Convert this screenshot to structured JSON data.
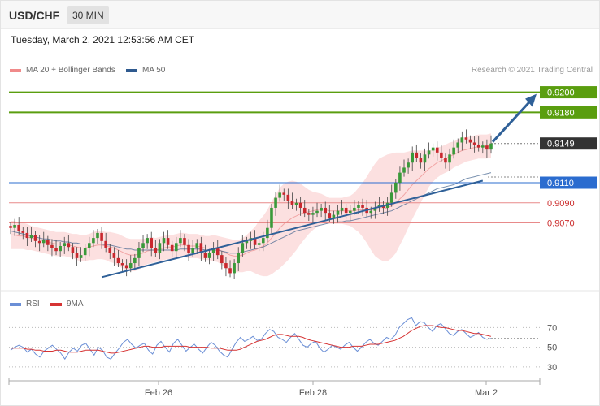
{
  "header": {
    "symbol": "USD/CHF",
    "interval": "30 MIN"
  },
  "datetime": "Tuesday, March 2, 2021 12:53:56 AM CET",
  "credit": "Research © 2021 Trading Central",
  "colors": {
    "green": "#5a9e0f",
    "blue": "#2b6ccf",
    "red": "#d9534f",
    "dark": "#333333",
    "candle_up": "#3a9a3a",
    "candle_down": "#c9282e",
    "band": "#fbdada",
    "ma50": "#3d5f8c",
    "rsi": "#6b8fd6",
    "rsi_ma": "#d63434",
    "arrow": "#2f6098"
  },
  "chart_data": [
    {
      "type": "candlestick",
      "legend": [
        {
          "label": "MA 20 + Bollinger Bands",
          "color": "#f08a8a"
        },
        {
          "label": "MA 50",
          "color": "#2f5a8f"
        }
      ],
      "ylim": [
        0.9005,
        0.9215
      ],
      "x_ticks": [
        "Feb 26",
        "Feb 28",
        "Mar 2"
      ],
      "price_levels": [
        {
          "value": 0.92,
          "label": "0.9200",
          "kind": "resistance",
          "color": "#5a9e0f"
        },
        {
          "value": 0.918,
          "label": "0.9180",
          "kind": "resistance",
          "color": "#5a9e0f"
        },
        {
          "value": 0.9149,
          "label": "0.9149",
          "kind": "last",
          "color": "#333333"
        },
        {
          "value": 0.911,
          "label": "0.9110",
          "kind": "pivot",
          "color": "#2b6ccf"
        },
        {
          "value": 0.909,
          "label": "0.9090",
          "kind": "support",
          "color": "#d9534f"
        },
        {
          "value": 0.907,
          "label": "0.9070",
          "kind": "support",
          "color": "#d9534f"
        }
      ],
      "closes": [
        0.9065,
        0.9068,
        0.9062,
        0.906,
        0.9055,
        0.9058,
        0.9052,
        0.905,
        0.9053,
        0.9048,
        0.9045,
        0.9042,
        0.9047,
        0.905,
        0.9046,
        0.904,
        0.9035,
        0.9038,
        0.9045,
        0.905,
        0.9055,
        0.906,
        0.9052,
        0.9045,
        0.904,
        0.9035,
        0.903,
        0.9028,
        0.9025,
        0.903,
        0.9035,
        0.9045,
        0.905,
        0.9055,
        0.9045,
        0.904,
        0.905,
        0.9055,
        0.9048,
        0.9042,
        0.905,
        0.9055,
        0.9048,
        0.904,
        0.9045,
        0.905,
        0.904,
        0.9035,
        0.904,
        0.9045,
        0.9038,
        0.903,
        0.9025,
        0.902,
        0.903,
        0.904,
        0.905,
        0.9052,
        0.9055,
        0.9048,
        0.905,
        0.9055,
        0.9065,
        0.9085,
        0.9095,
        0.91,
        0.9098,
        0.9092,
        0.9088,
        0.909,
        0.9085,
        0.908,
        0.9078,
        0.908,
        0.9082,
        0.9085,
        0.908,
        0.9075,
        0.9078,
        0.9082,
        0.9085,
        0.908,
        0.9082,
        0.9085,
        0.9088,
        0.9085,
        0.908,
        0.9082,
        0.9085,
        0.9088,
        0.9085,
        0.909,
        0.91,
        0.911,
        0.912,
        0.9125,
        0.913,
        0.914,
        0.9135,
        0.913,
        0.9138,
        0.9142,
        0.9145,
        0.914,
        0.9135,
        0.913,
        0.9138,
        0.9145,
        0.915,
        0.9155,
        0.9153,
        0.915,
        0.9148,
        0.9145,
        0.9147,
        0.9143,
        0.9149
      ],
      "ma20": [
        0.9058,
        0.9058,
        0.9057,
        0.9057,
        0.9056,
        0.9055,
        0.9054,
        0.9053,
        0.9052,
        0.9051,
        0.905,
        0.9049,
        0.9049,
        0.9049,
        0.9048,
        0.9047,
        0.9046,
        0.9045,
        0.9045,
        0.9046,
        0.9047,
        0.9048,
        0.9048,
        0.9047,
        0.9046,
        0.9045,
        0.9043,
        0.9041,
        0.9039,
        0.9038,
        0.9038,
        0.9039,
        0.904,
        0.9042,
        0.9043,
        0.9043,
        0.9044,
        0.9045,
        0.9046,
        0.9046,
        0.9047,
        0.9048,
        0.9048,
        0.9047,
        0.9047,
        0.9047,
        0.9046,
        0.9045,
        0.9045,
        0.9045,
        0.9044,
        0.9042,
        0.904,
        0.9038,
        0.9037,
        0.9037,
        0.9038,
        0.904,
        0.9042,
        0.9043,
        0.9045,
        0.9047,
        0.905,
        0.9055,
        0.906,
        0.9065,
        0.9069,
        0.9072,
        0.9075,
        0.9077,
        0.9079,
        0.908,
        0.9081,
        0.9082,
        0.9083,
        0.9084,
        0.9083,
        0.9082,
        0.9082,
        0.9082,
        0.9082,
        0.9082,
        0.9082,
        0.9082,
        0.9083,
        0.9083,
        0.9083,
        0.9083,
        0.9083,
        0.9084,
        0.9084,
        0.9085,
        0.9087,
        0.909,
        0.9094,
        0.9098,
        0.9103,
        0.9108,
        0.9112,
        0.9116,
        0.912,
        0.9124,
        0.9127,
        0.913,
        0.9132,
        0.9134,
        0.9136,
        0.9138,
        0.914,
        0.9142,
        0.9143,
        0.9144,
        0.9145,
        0.9146,
        0.9146,
        0.9146,
        0.9147
      ],
      "band_width": [
        0.0014,
        0.0014,
        0.0013,
        0.0013,
        0.0013,
        0.0012,
        0.0012,
        0.0012,
        0.0012,
        0.0012,
        0.0012,
        0.0012,
        0.0012,
        0.0012,
        0.0012,
        0.0012,
        0.0013,
        0.0013,
        0.0013,
        0.0013,
        0.0014,
        0.0014,
        0.0014,
        0.0014,
        0.0015,
        0.0015,
        0.0016,
        0.0016,
        0.0016,
        0.0016,
        0.0016,
        0.0015,
        0.0014,
        0.0013,
        0.0013,
        0.0012,
        0.0012,
        0.0012,
        0.0012,
        0.0012,
        0.0012,
        0.0012,
        0.0012,
        0.0012,
        0.0012,
        0.0012,
        0.0012,
        0.0012,
        0.0012,
        0.0013,
        0.0013,
        0.0014,
        0.0015,
        0.0016,
        0.0016,
        0.0016,
        0.0017,
        0.0018,
        0.002,
        0.0023,
        0.0027,
        0.003,
        0.0033,
        0.0036,
        0.0038,
        0.004,
        0.004,
        0.0039,
        0.0037,
        0.0034,
        0.003,
        0.0026,
        0.0022,
        0.0019,
        0.0017,
        0.0015,
        0.0014,
        0.0013,
        0.0013,
        0.0013,
        0.0013,
        0.0014,
        0.0015,
        0.0018,
        0.0022,
        0.0027,
        0.0033,
        0.004,
        0.0046,
        0.005,
        0.0052,
        0.0053,
        0.0052,
        0.005,
        0.0046,
        0.0042,
        0.0038,
        0.0034,
        0.003,
        0.0026,
        0.0022,
        0.0018,
        0.0016,
        0.0015,
        0.0014,
        0.0014,
        0.0014,
        0.0013,
        0.0013,
        0.0013,
        0.0012,
        0.0012,
        0.0012,
        0.0012,
        0.0012,
        0.0012,
        0.0012,
        0.0012
      ],
      "ma50": [
        0.9062,
        0.9061,
        0.906,
        0.9059,
        0.9058,
        0.9057,
        0.9056,
        0.9055,
        0.9054,
        0.9054,
        0.9053,
        0.9052,
        0.9052,
        0.9051,
        0.9051,
        0.905,
        0.905,
        0.9049,
        0.9049,
        0.9049,
        0.9049,
        0.9049,
        0.9049,
        0.9048,
        0.9048,
        0.9047,
        0.9046,
        0.9045,
        0.9044,
        0.9044,
        0.9043,
        0.9043,
        0.9043,
        0.9043,
        0.9043,
        0.9043,
        0.9043,
        0.9043,
        0.9043,
        0.9043,
        0.9043,
        0.9044,
        0.9044,
        0.9044,
        0.9044,
        0.9044,
        0.9044,
        0.9043,
        0.9043,
        0.9043,
        0.9043,
        0.9042,
        0.9041,
        0.904,
        0.904,
        0.904,
        0.9041,
        0.9042,
        0.9043,
        0.9044,
        0.9045,
        0.9046,
        0.9048,
        0.905,
        0.9052,
        0.9054,
        0.9056,
        0.9058,
        0.906,
        0.9062,
        0.9063,
        0.9064,
        0.9065,
        0.9066,
        0.9067,
        0.9068,
        0.9069,
        0.907,
        0.907,
        0.9071,
        0.9071,
        0.9072,
        0.9072,
        0.9073,
        0.9074,
        0.9075,
        0.9076,
        0.9077,
        0.9078,
        0.9079,
        0.908,
        0.9081,
        0.9082,
        0.9084,
        0.9086,
        0.9088,
        0.909,
        0.9092,
        0.9094,
        0.9096,
        0.9098,
        0.91,
        0.9102,
        0.9104,
        0.9105,
        0.9106,
        0.9107,
        0.9108,
        0.911,
        0.9112,
        0.9114,
        0.9115,
        0.9116,
        0.9117,
        0.9118,
        0.9119,
        0.912
      ],
      "trendline": {
        "from": [
          0,
          0.9016
        ],
        "to": [
          1,
          0.9112
        ],
        "start_index": 63
      },
      "arrow": {
        "from": 0.9149,
        "to": 0.92
      }
    },
    {
      "type": "line",
      "legend": [
        {
          "label": "RSI",
          "color": "#6b8fd6"
        },
        {
          "label": "9MA",
          "color": "#d63434"
        }
      ],
      "ylim": [
        20,
        86
      ],
      "y_ticks": [
        30,
        50,
        70
      ],
      "rsi": [
        47,
        50,
        52,
        50,
        45,
        48,
        43,
        40,
        46,
        49,
        52,
        48,
        44,
        38,
        45,
        49,
        46,
        52,
        54,
        48,
        42,
        50,
        47,
        40,
        38,
        44,
        49,
        55,
        58,
        53,
        49,
        52,
        54,
        47,
        43,
        52,
        56,
        50,
        45,
        54,
        58,
        52,
        46,
        50,
        53,
        48,
        44,
        50,
        55,
        52,
        46,
        42,
        40,
        48,
        55,
        60,
        56,
        58,
        61,
        57,
        58,
        64,
        68,
        66,
        60,
        58,
        55,
        60,
        64,
        58,
        52,
        50,
        54,
        56,
        49,
        45,
        48,
        52,
        50,
        48,
        52,
        55,
        50,
        46,
        50,
        55,
        58,
        54,
        52,
        56,
        60,
        58,
        62,
        70,
        74,
        78,
        80,
        72,
        76,
        75,
        70,
        66,
        72,
        74,
        69,
        64,
        62,
        66,
        68,
        64,
        60,
        62,
        65,
        60,
        58,
        59
      ],
      "rsi_ma": [
        49,
        49,
        49,
        49,
        48,
        48,
        47,
        47,
        46,
        46,
        46,
        47,
        47,
        46,
        45,
        45,
        45,
        46,
        47,
        47,
        47,
        47,
        46,
        45,
        44,
        44,
        45,
        46,
        47,
        48,
        49,
        50,
        51,
        51,
        50,
        50,
        50,
        51,
        51,
        51,
        51,
        51,
        51,
        50,
        50,
        50,
        50,
        50,
        49,
        49,
        49,
        48,
        47,
        47,
        47,
        48,
        50,
        52,
        54,
        56,
        57,
        58,
        60,
        62,
        63,
        63,
        62,
        61,
        61,
        61,
        60,
        58,
        57,
        56,
        55,
        54,
        53,
        52,
        51,
        50,
        50,
        50,
        51,
        51,
        51,
        52,
        53,
        53,
        53,
        54,
        55,
        56,
        57,
        59,
        61,
        64,
        67,
        69,
        71,
        72,
        72,
        72,
        71,
        70,
        70,
        69,
        68,
        67,
        67,
        66,
        65,
        64,
        64,
        63,
        62,
        61
      ]
    }
  ]
}
